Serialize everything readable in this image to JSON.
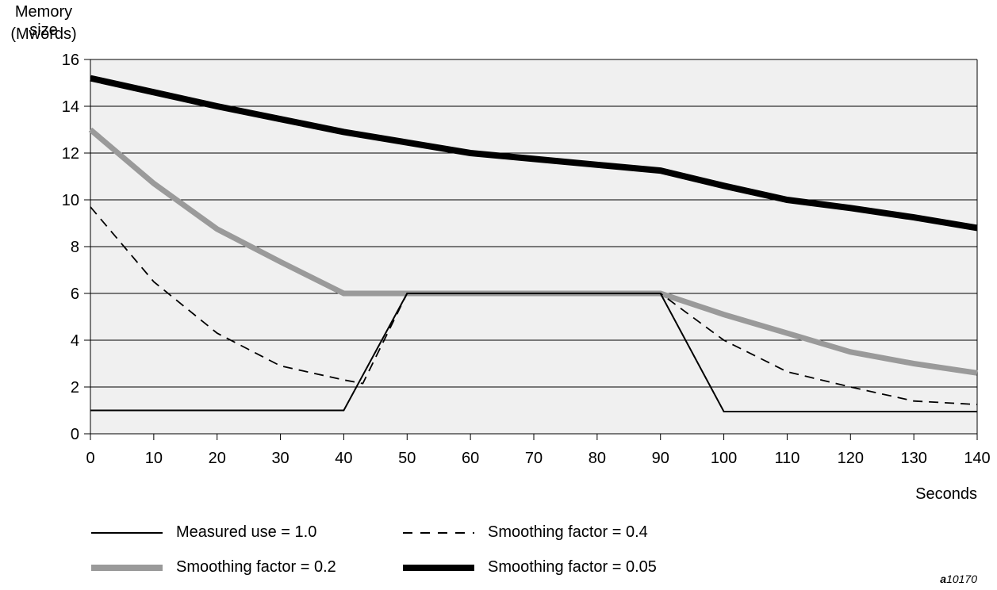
{
  "chart_data": {
    "type": "line",
    "ylabel": [
      "Memory size",
      "(Mwords)"
    ],
    "xlabel": "Seconds",
    "xlim": [
      0,
      140
    ],
    "ylim": [
      0,
      16
    ],
    "x_ticks": [
      0,
      10,
      20,
      30,
      40,
      50,
      60,
      70,
      80,
      90,
      100,
      110,
      120,
      130,
      140
    ],
    "y_ticks": [
      0,
      2,
      4,
      6,
      8,
      10,
      12,
      14,
      16
    ],
    "grid": "horizontal",
    "background": "#f0f0f0",
    "legend_position": "bottom",
    "series": [
      {
        "name": "Measured use = 1.0",
        "style": "thin-solid",
        "color": "#000000",
        "points": [
          [
            0,
            1.0
          ],
          [
            40,
            1.0
          ],
          [
            50,
            6.0
          ],
          [
            90,
            6.0
          ],
          [
            100,
            0.95
          ],
          [
            140,
            0.95
          ]
        ]
      },
      {
        "name": "Smoothing factor = 0.4",
        "style": "dashed",
        "color": "#000000",
        "points": [
          [
            0,
            9.7
          ],
          [
            10,
            6.5
          ],
          [
            20,
            4.3
          ],
          [
            30,
            2.9
          ],
          [
            40,
            2.3
          ],
          [
            43,
            2.15
          ],
          [
            50,
            6.0
          ],
          [
            90,
            6.0
          ],
          [
            100,
            4.0
          ],
          [
            110,
            2.65
          ],
          [
            120,
            2.0
          ],
          [
            130,
            1.4
          ],
          [
            140,
            1.25
          ]
        ]
      },
      {
        "name": "Smoothing factor = 0.2",
        "style": "thick-gray",
        "color": "#9a9a9a",
        "points": [
          [
            0,
            13.0
          ],
          [
            10,
            10.7
          ],
          [
            20,
            8.75
          ],
          [
            30,
            7.35
          ],
          [
            40,
            6.0
          ],
          [
            50,
            6.0
          ],
          [
            90,
            6.0
          ],
          [
            100,
            5.1
          ],
          [
            110,
            4.3
          ],
          [
            120,
            3.5
          ],
          [
            130,
            3.0
          ],
          [
            140,
            2.6
          ]
        ]
      },
      {
        "name": "Smoothing factor = 0.05",
        "style": "thick-black",
        "color": "#000000",
        "points": [
          [
            0,
            15.2
          ],
          [
            10,
            14.6
          ],
          [
            20,
            14.0
          ],
          [
            30,
            13.45
          ],
          [
            40,
            12.9
          ],
          [
            50,
            12.45
          ],
          [
            60,
            12.0
          ],
          [
            70,
            11.75
          ],
          [
            80,
            11.5
          ],
          [
            90,
            11.25
          ],
          [
            100,
            10.6
          ],
          [
            110,
            10.0
          ],
          [
            120,
            9.65
          ],
          [
            130,
            9.25
          ],
          [
            140,
            8.8
          ]
        ]
      }
    ]
  },
  "legend": [
    "Measured use = 1.0",
    "Smoothing factor = 0.4",
    "Smoothing factor = 0.2",
    "Smoothing factor = 0.05"
  ],
  "figure_id_prefix": "a",
  "figure_id_number": "10170"
}
